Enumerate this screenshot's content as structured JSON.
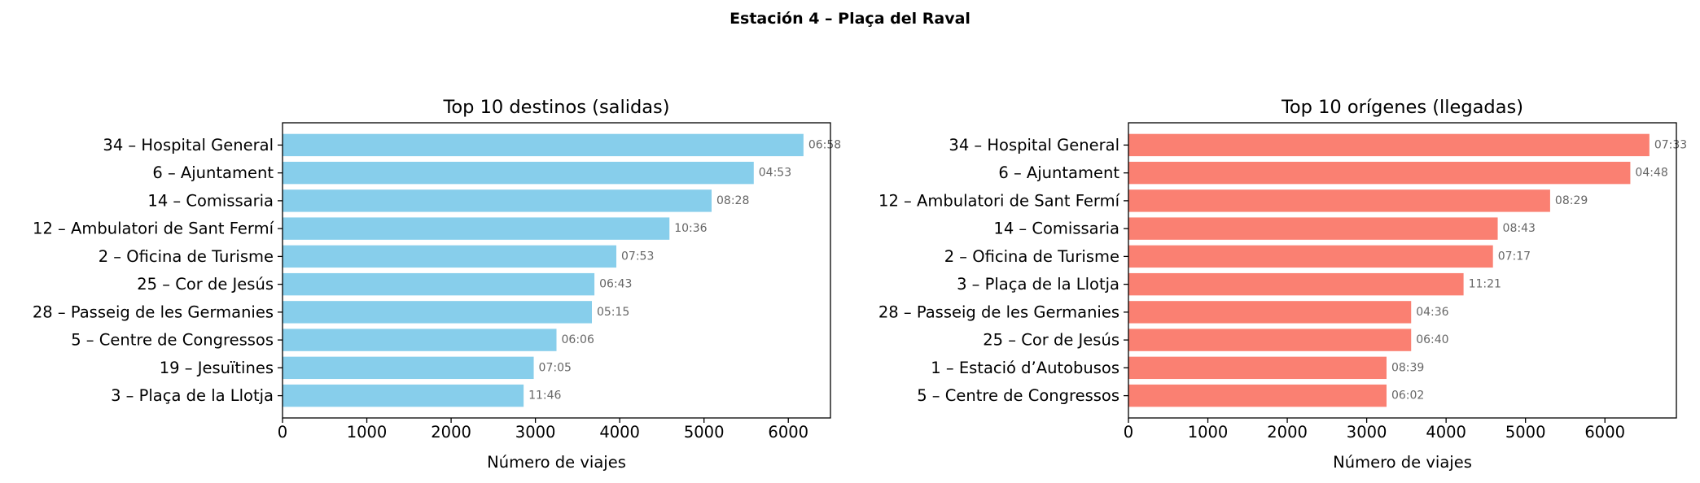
{
  "figure_title": "Estación 4 – Plaça del Raval",
  "colors": {
    "left_bars": "#87ceeb",
    "right_bars": "#fa8072",
    "duration_text": "#666666",
    "axes": "#000000"
  },
  "chart_data": [
    {
      "type": "bar",
      "orientation": "horizontal",
      "title": "Top 10 destinos (salidas)",
      "xlabel": "Número de viajes",
      "ylabel": "",
      "xlim": [
        0,
        6500
      ],
      "xticks": [
        0,
        1000,
        2000,
        3000,
        4000,
        5000,
        6000
      ],
      "categories": [
        "34 – Hospital General",
        "6 – Ajuntament",
        "14 – Comissaria",
        "12 – Ambulatori de Sant Fermí",
        "2 – Oficina de Turisme",
        "25 – Cor de Jesús",
        "28 – Passeig de les Germanies",
        "5 – Centre de Congressos",
        "19 – Jesuïtines",
        "3 – Plaça de la Llotja"
      ],
      "values": [
        6180,
        5590,
        5090,
        4590,
        3960,
        3700,
        3670,
        3250,
        2980,
        2860
      ],
      "bar_labels": [
        "06:58",
        "04:53",
        "08:28",
        "10:36",
        "07:53",
        "06:43",
        "05:15",
        "06:06",
        "07:05",
        "11:46"
      ],
      "color": "#87ceeb"
    },
    {
      "type": "bar",
      "orientation": "horizontal",
      "title": "Top 10 orígenes (llegadas)",
      "xlabel": "Número de viajes",
      "ylabel": "",
      "xlim": [
        0,
        6900
      ],
      "xticks": [
        0,
        1000,
        2000,
        3000,
        4000,
        5000,
        6000
      ],
      "categories": [
        "34 – Hospital General",
        "6 – Ajuntament",
        "12 – Ambulatori de Sant Fermí",
        "14 – Comissaria",
        "2 – Oficina de Turisme",
        "3 – Plaça de la Llotja",
        "28 – Passeig de les Germanies",
        "25 – Cor de Jesús",
        "1 – Estació d’Autobusos",
        "5 – Centre de Congressos"
      ],
      "values": [
        6560,
        6320,
        5310,
        4650,
        4590,
        4220,
        3560,
        3560,
        3250,
        3250
      ],
      "bar_labels": [
        "07:33",
        "04:48",
        "08:29",
        "08:43",
        "07:17",
        "11:21",
        "04:36",
        "06:40",
        "08:39",
        "06:02"
      ],
      "color": "#fa8072"
    }
  ]
}
